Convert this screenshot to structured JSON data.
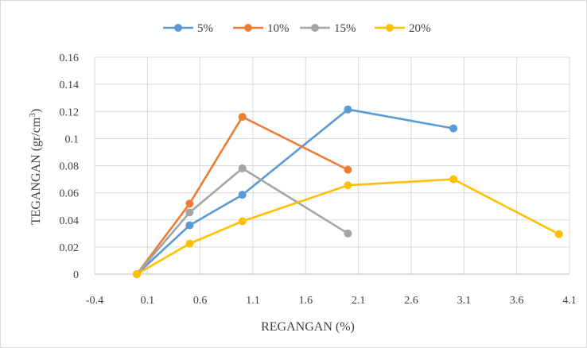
{
  "chart_data": {
    "type": "line",
    "title": "",
    "xlabel": "REGANGAN (%)",
    "ylabel": "TEGANGAN (gr/cm³)",
    "ylabel_parts": {
      "main": "TEGANGAN (gr/cm",
      "sup": "3",
      "close": ")"
    },
    "xlim": [
      -0.4,
      4.1
    ],
    "ylim": [
      0,
      0.16
    ],
    "x_ticks": [
      -0.4,
      0.1,
      0.6,
      1.1,
      1.6,
      2.1,
      2.6,
      3.1,
      3.6,
      4.1
    ],
    "x_tick_labels": [
      "-0.4",
      "0.1",
      "0.6",
      "1.1",
      "1.6",
      "2.1",
      "2.6",
      "3.1",
      "3.6",
      "4.1"
    ],
    "y_ticks": [
      0,
      0.02,
      0.04,
      0.06,
      0.08,
      0.1,
      0.12,
      0.14,
      0.16
    ],
    "y_tick_labels": [
      "0",
      "0.02",
      "0.04",
      "0.06",
      "0.08",
      "0.1",
      "0.12",
      "0.14",
      "0.16"
    ],
    "grid": true,
    "legend_position": "top",
    "series": [
      {
        "name": "5%",
        "color": "#5b9bd5",
        "x": [
          0,
          0.5,
          1,
          2,
          3
        ],
        "y": [
          0,
          0.036,
          0.0585,
          0.1215,
          0.1075
        ]
      },
      {
        "name": "10%",
        "color": "#ed7d31",
        "x": [
          0,
          0.5,
          1,
          2
        ],
        "y": [
          0,
          0.052,
          0.116,
          0.077
        ]
      },
      {
        "name": "15%",
        "color": "#a5a5a5",
        "x": [
          0,
          0.5,
          1,
          2
        ],
        "y": [
          0,
          0.0455,
          0.078,
          0.03
        ]
      },
      {
        "name": "20%",
        "color": "#ffc000",
        "x": [
          0,
          0.5,
          1,
          2,
          3,
          4
        ],
        "y": [
          0,
          0.0225,
          0.039,
          0.0655,
          0.07,
          0.0295
        ]
      }
    ]
  }
}
